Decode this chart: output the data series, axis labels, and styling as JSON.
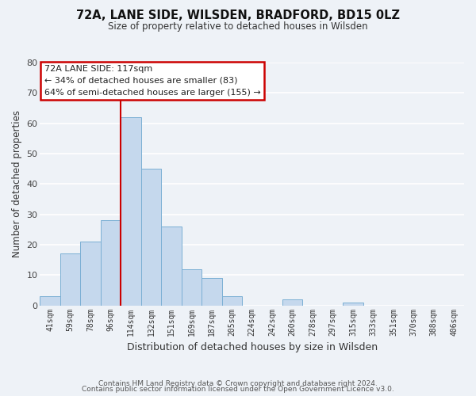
{
  "title": "72A, LANE SIDE, WILSDEN, BRADFORD, BD15 0LZ",
  "subtitle": "Size of property relative to detached houses in Wilsden",
  "xlabel": "Distribution of detached houses by size in Wilsden",
  "ylabel": "Number of detached properties",
  "bin_labels": [
    "41sqm",
    "59sqm",
    "78sqm",
    "96sqm",
    "114sqm",
    "132sqm",
    "151sqm",
    "169sqm",
    "187sqm",
    "205sqm",
    "224sqm",
    "242sqm",
    "260sqm",
    "278sqm",
    "297sqm",
    "315sqm",
    "333sqm",
    "351sqm",
    "370sqm",
    "388sqm",
    "406sqm"
  ],
  "bar_values": [
    3,
    17,
    21,
    28,
    62,
    45,
    26,
    12,
    9,
    3,
    0,
    0,
    2,
    0,
    0,
    1,
    0,
    0,
    0,
    0,
    0
  ],
  "bar_color": "#c5d8ed",
  "bar_edge_color": "#7bafd4",
  "vline_color": "#cc0000",
  "vline_at_index": 4,
  "ylim": [
    0,
    80
  ],
  "yticks": [
    0,
    10,
    20,
    30,
    40,
    50,
    60,
    70,
    80
  ],
  "annotation_title": "72A LANE SIDE: 117sqm",
  "annotation_line1": "← 34% of detached houses are smaller (83)",
  "annotation_line2": "64% of semi-detached houses are larger (155) →",
  "annotation_box_color": "#cc0000",
  "footer_line1": "Contains HM Land Registry data © Crown copyright and database right 2024.",
  "footer_line2": "Contains public sector information licensed under the Open Government Licence v3.0.",
  "background_color": "#eef2f7",
  "grid_color": "#ffffff"
}
